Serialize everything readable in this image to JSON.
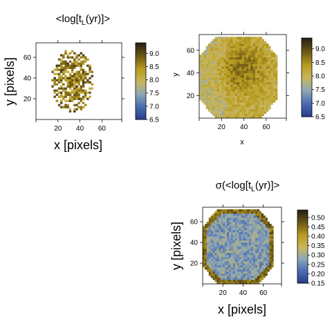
{
  "chart_data": [
    {
      "type": "heatmap",
      "title_parts": [
        "<log[t",
        "L",
        "(yr)]>"
      ],
      "xlabel": "x [pixels]",
      "ylabel": "y [pixels]",
      "x_ticks": [
        20,
        40,
        60
      ],
      "y_ticks": [
        20,
        40,
        60
      ],
      "xlim": [
        0,
        78
      ],
      "ylim": [
        0,
        74
      ],
      "colorbar_ticks": [
        "6.5",
        "7.0",
        "7.5",
        "8.0",
        "8.5",
        "9.0"
      ],
      "colorbar_range": [
        6.5,
        9.4
      ],
      "map": {
        "shape": "sparse-noisy",
        "x_range": [
          14,
          52
        ],
        "y_range": [
          7,
          68
        ],
        "low": 7.3,
        "high": 9.2
      }
    },
    {
      "type": "heatmap",
      "title_parts": [],
      "xlabel": "x",
      "ylabel": "y",
      "x_ticks": [
        20,
        40,
        60
      ],
      "y_ticks": [
        20,
        40,
        60
      ],
      "xlim": [
        0,
        78
      ],
      "ylim": [
        0,
        74
      ],
      "colorbar_ticks": [
        "6.5",
        "7.0",
        "7.5",
        "8.0",
        "8.5",
        "9.0"
      ],
      "colorbar_range": [
        6.5,
        9.4
      ],
      "map": {
        "shape": "octagon-smooth",
        "x_range": [
          0,
          70
        ],
        "y_range": [
          0,
          72
        ],
        "low": 7.2,
        "high": 8.9
      }
    },
    {
      "type": "heatmap",
      "title_parts": [
        "σ(<log[t",
        "L",
        "(yr)]>"
      ],
      "xlabel": "x [pixels]",
      "ylabel": "y [pixels]",
      "x_ticks": [
        20,
        40,
        60
      ],
      "y_ticks": [
        20,
        40,
        60
      ],
      "xlim": [
        0,
        78
      ],
      "ylim": [
        0,
        74
      ],
      "colorbar_ticks": [
        "0.15",
        "0.20",
        "0.25",
        "0.30",
        "0.35",
        "0.40",
        "0.45",
        "0.50"
      ],
      "colorbar_range": [
        0.15,
        0.54
      ],
      "map": {
        "shape": "octagon-rim",
        "x_range": [
          0,
          70
        ],
        "y_range": [
          0,
          72
        ],
        "low": 0.17,
        "high": 0.5
      }
    }
  ],
  "colormap": [
    "#2a3f8f",
    "#4a6fb3",
    "#8fa8b5",
    "#c9b65a",
    "#b79a1f",
    "#6e5a16",
    "#2a2416"
  ]
}
